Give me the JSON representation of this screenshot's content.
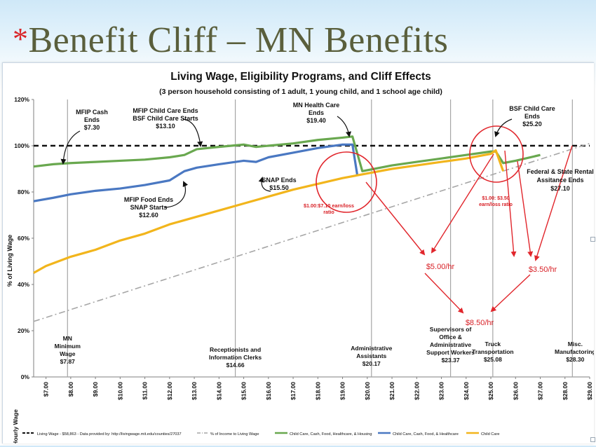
{
  "slide": {
    "bullet": "*",
    "title": "Benefit Cliff – MN Benefits"
  },
  "chart_data": {
    "type": "line",
    "title": "Living Wage, Eligibility Programs, and Cliff Effects",
    "subtitle": "(3 person household consisting of 1 adult, 1 young child, and 1 school age child)",
    "ylabel": "% of Living Wage",
    "xlabel": "Hourly Wage",
    "xlim": [
      6.5,
      29.0
    ],
    "ylim": [
      0,
      120
    ],
    "y_ticks": [
      "0%",
      "20%",
      "40%",
      "60%",
      "80%",
      "100%",
      "120%"
    ],
    "x_ticks": [
      "$7.00",
      "$8.00",
      "$9.00",
      "$10.00",
      "$11.00",
      "$12.00",
      "$13.00",
      "$14.00",
      "$15.00",
      "$16.00",
      "$17.00",
      "$18.00",
      "$19.00",
      "$20.00",
      "$21.00",
      "$22.00",
      "$23.00",
      "$24.00",
      "$25.00",
      "$26.00",
      "$27.00",
      "$28.00",
      "$29.00"
    ],
    "grid": false,
    "legend_position": "bottom",
    "series": [
      {
        "name": "Living Wage - $58,863 - Data provided by:  http://livingwage.mit.edu/counties/27037",
        "color": "#111111",
        "style": "dashed",
        "x": [
          6.5,
          29.0
        ],
        "y": [
          100,
          100
        ]
      },
      {
        "name": "% of Income to Living Wage",
        "color": "#a6a6a6",
        "style": "dashdot",
        "x": [
          6.5,
          29.0
        ],
        "y": [
          24,
          101
        ]
      },
      {
        "name": "Child Care, Cash, Food, Healthcare, & Housing",
        "color": "#69a84f",
        "style": "solid",
        "x": [
          6.5,
          7.3,
          8.0,
          9.0,
          10.0,
          11.0,
          12.0,
          12.6,
          13.1,
          14.0,
          15.0,
          15.5,
          16.0,
          17.0,
          18.0,
          19.0,
          19.4,
          19.8,
          21.0,
          22.0,
          23.0,
          24.0,
          25.0,
          25.2,
          25.5,
          26.0,
          27.0
        ],
        "y": [
          91,
          92,
          92.5,
          93,
          93.5,
          94,
          95,
          96,
          98.5,
          99.5,
          100.5,
          99.5,
          100,
          101,
          102.5,
          103.5,
          104,
          89,
          91.5,
          93,
          94.5,
          96,
          97.5,
          97.5,
          92.5,
          93.5,
          96
        ]
      },
      {
        "name": "Child Care, Cash, Food, & Healthcare",
        "color": "#4a78c2",
        "style": "solid",
        "x": [
          6.5,
          7.3,
          8.0,
          9.0,
          10.0,
          11.0,
          12.0,
          12.6,
          13.1,
          14.0,
          15.0,
          15.5,
          16.0,
          17.0,
          18.0,
          19.0,
          19.4,
          19.6
        ],
        "y": [
          76,
          77.5,
          79,
          80.5,
          81.5,
          83,
          85,
          89,
          90.5,
          92,
          93.5,
          93,
          95,
          97,
          99,
          100.5,
          100.5,
          87
        ]
      },
      {
        "name": "Child Care",
        "color": "#f2b51c",
        "style": "solid",
        "x": [
          6.5,
          7.0,
          8.0,
          9.0,
          10.0,
          11.0,
          12.0,
          13.0,
          14.0,
          15.0,
          16.0,
          17.0,
          18.0,
          19.0,
          20.0,
          21.0,
          22.0,
          23.0,
          24.0,
          25.0,
          25.2,
          25.5
        ],
        "y": [
          45,
          48,
          52,
          55,
          59,
          62,
          66,
          69,
          72,
          75,
          78,
          81,
          83.5,
          86,
          88,
          90,
          91.5,
          93,
          94.5,
          96.5,
          98,
          89
        ]
      }
    ],
    "occupation_lines": [
      {
        "x": 7.87,
        "label": "MN\nMinimum\nWage\n$7.87"
      },
      {
        "x": 14.66,
        "label": "Receptionists and\nInformation Clerks\n$14.66"
      },
      {
        "x": 20.17,
        "label": "Administrative\nAssistants\n$20.17"
      },
      {
        "x": 23.37,
        "label": "Supervisors of\nOffice &\nAdministrative\nSupport Workers\n$23.37"
      },
      {
        "x": 25.08,
        "label": "Truck\nTransportation\n$25.08"
      },
      {
        "x": 28.3,
        "label": "Misc.\nManufactoring\n$28.30"
      }
    ],
    "annotations": [
      {
        "text": "MFIP Cash\nEnds\n$7.30"
      },
      {
        "text": "MFIP Child Care Ends\nBSF Child Care Starts\n$13.10"
      },
      {
        "text": "MN Health Care\nEnds\n$19.40"
      },
      {
        "text": "BSF Child Care\nEnds\n$25.20"
      },
      {
        "text": "MFIP Food Ends\nSNAP Starts\n$12.60"
      },
      {
        "text": "SNAP Ends\n$15.50"
      },
      {
        "text": "Federal & State Rental\nAssitance Ends\n$27.10"
      },
      {
        "text": "$1.00:$7.10 earn/loss\nratio"
      },
      {
        "text": "$1.00: $3.50\nearn/loss ratio"
      },
      {
        "text": "$5.00/hr"
      },
      {
        "text": "$3.50/hr"
      },
      {
        "text": "$8.50/hr"
      }
    ]
  }
}
